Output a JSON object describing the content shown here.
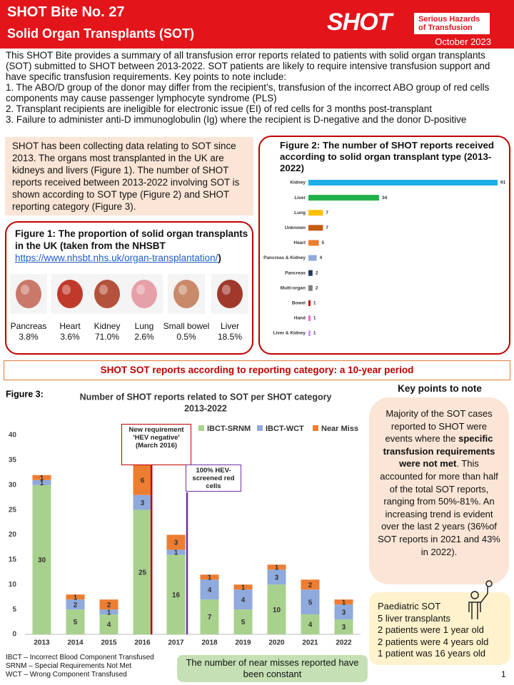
{
  "header": {
    "title": "SHOT Bite No. 27",
    "subtitle": "Solid Organ Transplants (SOT)",
    "logo": "SHOT",
    "logo_tagline": "Serious Hazards of Transfusion",
    "date": "October 2023"
  },
  "intro": {
    "text": "This SHOT Bite provides a summary of all transfusion error reports related to patients with solid organ transplants (SOT) submitted to SHOT between 2013-2022.  SOT patients are likely to require intensive transfusion support and have specific transfusion requirements. Key points to note include:",
    "points": [
      "1. The ABO/D group of the donor may differ from the recipient’s, transfusion of the incorrect ABO group of red cells components may cause passenger lymphocyte syndrome (PLS)",
      "2. Transplant recipients are ineligible  for electronic issue (EI) of red cells for 3 months post-transplant",
      "3. Failure to administer anti-D immunoglobulin (Ig) where the recipient is D-negative and the donor D-positive"
    ]
  },
  "summary": "SHOT has been collecting data relating to SOT since 2013. The organs most transplanted in the UK are kidneys and livers (Figure 1). The number of SHOT reports received between 2013-2022 involving SOT is shown according to SOT type (Figure 2) and SHOT reporting category (Figure 3).",
  "figure1": {
    "title": "Figure 1:  The proportion of solid organ transplants in the UK (taken from the NHSBT",
    "link": "https://www.nhsbt.nhs.uk/organ-transplantation/",
    "title_end": ")",
    "organs": [
      {
        "name": "Pancreas",
        "percent": "3.8%"
      },
      {
        "name": "Heart",
        "percent": "3.6%"
      },
      {
        "name": "Kidney",
        "percent": "71.0%"
      },
      {
        "name": "Lung",
        "percent": "2.6%"
      },
      {
        "name": "Small bowel",
        "percent": "0.5%"
      },
      {
        "name": "Liver",
        "percent": "18.5%"
      }
    ]
  },
  "banner": "SHOT SOT reports according to reporting category: a 10-year period",
  "chart_data": [
    {
      "type": "hbar",
      "title": "Figure 2:  The number of SHOT reports received according to solid organ transplant type (2013-2022)",
      "categories": [
        "Kidney",
        "Liver",
        "Lung",
        "Unknown",
        "Heart",
        "Pancreas & Kidney",
        "Pancreas",
        "Multi-organ",
        "Bowel",
        "Hand",
        "Liver & Kidney"
      ],
      "values": [
        91,
        34,
        7,
        7,
        5,
        4,
        2,
        2,
        1,
        1,
        1
      ],
      "colors": [
        "#1eaee8",
        "#22b04b",
        "#ffc000",
        "#c55a11",
        "#ed7d31",
        "#8faadc",
        "#1f3864",
        "#7f7f7f",
        "#c00000",
        "#ff66cc",
        "#cc99ff"
      ]
    },
    {
      "type": "stacked_bar",
      "label": "Figure 3:",
      "title": "Number of SHOT reports related to SOT per SHOT category",
      "subtitle": "2013-2022",
      "categories": [
        "2013",
        "2014",
        "2015",
        "2016",
        "2017",
        "2018",
        "2019",
        "2020",
        "2021",
        "2022"
      ],
      "series": [
        {
          "name": "IBCT-SRNM",
          "color": "#a9d18e",
          "values": [
            30,
            5,
            4,
            25,
            16,
            7,
            5,
            10,
            4,
            3
          ]
        },
        {
          "name": "IBCT-WCT",
          "color": "#8faadc",
          "values": [
            1,
            2,
            1,
            3,
            1,
            4,
            4,
            3,
            5,
            3
          ]
        },
        {
          "name": "Near Miss",
          "color": "#ed7d31",
          "values": [
            1,
            1,
            2,
            6,
            3,
            1,
            1,
            1,
            2,
            1
          ]
        }
      ],
      "ylim": [
        0,
        40
      ],
      "yticks": [
        0,
        5,
        10,
        15,
        20,
        25,
        30,
        35,
        40
      ],
      "grid": false,
      "legend": "top-right",
      "annotations": [
        {
          "text": "New requirement 'HEV negative' (March 2016)",
          "color": "#c00000"
        },
        {
          "text": "100% HEV-screened red cells",
          "color": "#7030a0"
        }
      ]
    }
  ],
  "key_points": {
    "heading": "Key points to note",
    "text_start": "Majority of the SOT cases reported to SHOT were events where the ",
    "text_bold": "specific transfusion requirements were not met",
    "text_end": ". This accounted for more than half of the total SOT reports, ranging from 50%-81%. An increasing trend is evident over the last 2 years (36%of SOT reports in 2021 and 43% in 2022)."
  },
  "paediatric": [
    "Paediatric SOT",
    "5 liver transplants",
    "2 patients were 1 year old",
    "2 patients were 4 years old",
    "1 patient was 16 years old"
  ],
  "footnotes": [
    "IBCT – Incorrect Blood Component Transfused",
    "SRNM – Special Requirements Not Met",
    "WCT – Wrong Component Transfused"
  ],
  "near_miss_note": "The number of near misses reported have been constant",
  "page_number": 1
}
